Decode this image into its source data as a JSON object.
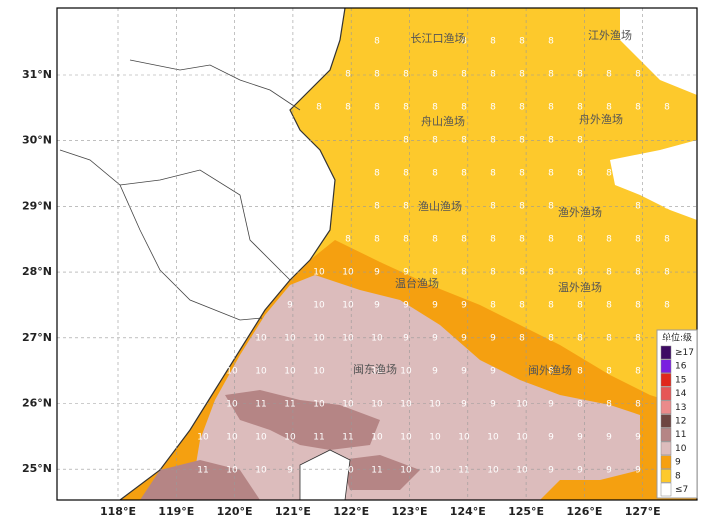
{
  "lat_labels": [
    "31°N",
    "30°N",
    "29°N",
    "28°N",
    "27°N",
    "26°N",
    "25°N"
  ],
  "lon_labels": [
    "118°E",
    "119°E",
    "120°E",
    "121°E",
    "122°E",
    "123°E",
    "124°E",
    "125°E",
    "126°E",
    "127°E"
  ],
  "fishing_grounds": [
    "长江口渔场",
    "江外渔场",
    "舟山渔场",
    "舟外渔场",
    "渔山渔场",
    "渔外渔场",
    "温台渔场",
    "温外渔场",
    "闽东渔场",
    "闽外渔场"
  ],
  "legend": {
    "title": "单位:级",
    "items": [
      {
        "label": "≥17",
        "color": "#3d0b63"
      },
      {
        "label": "16",
        "color": "#7a1fe0"
      },
      {
        "label": "15",
        "color": "#e0281c"
      },
      {
        "label": "14",
        "color": "#e65656"
      },
      {
        "label": "13",
        "color": "#eb8a8a"
      },
      {
        "label": "12",
        "color": "#6e4642"
      },
      {
        "label": "11",
        "color": "#b58585"
      },
      {
        "label": "10",
        "color": "#dcbcbc"
      },
      {
        "label": "9",
        "color": "#f5a010"
      },
      {
        "label": "8",
        "color": "#fdc92c"
      },
      {
        "label": "≤7",
        "color": "#ffffff"
      }
    ]
  },
  "grid": [
    [
      null,
      null,
      null,
      null,
      null,
      null,
      8,
      null,
      null,
      8,
      8,
      8,
      8,
      null,
      null,
      8,
      null
    ],
    [
      null,
      null,
      null,
      null,
      null,
      8,
      8,
      8,
      8,
      8,
      8,
      8,
      8,
      8,
      8,
      8,
      null
    ],
    [
      null,
      null,
      null,
      null,
      8,
      8,
      8,
      8,
      8,
      8,
      8,
      8,
      8,
      8,
      8,
      8,
      8
    ],
    [
      null,
      null,
      null,
      null,
      null,
      null,
      null,
      8,
      8,
      8,
      8,
      8,
      8,
      8,
      null,
      null,
      null
    ],
    [
      null,
      null,
      null,
      null,
      null,
      null,
      8,
      8,
      8,
      8,
      8,
      8,
      8,
      8,
      8,
      null,
      null
    ],
    [
      null,
      null,
      null,
      null,
      null,
      null,
      8,
      8,
      null,
      null,
      8,
      8,
      8,
      null,
      null,
      8,
      8
    ],
    [
      null,
      null,
      null,
      null,
      null,
      8,
      8,
      8,
      8,
      8,
      8,
      8,
      8,
      8,
      8,
      8,
      8
    ],
    [
      null,
      null,
      null,
      null,
      10,
      10,
      9,
      9,
      8,
      8,
      8,
      8,
      8,
      8,
      8,
      8,
      8
    ],
    [
      null,
      null,
      null,
      9,
      10,
      10,
      9,
      9,
      9,
      9,
      8,
      8,
      8,
      8,
      8,
      8,
      8
    ],
    [
      null,
      null,
      10,
      10,
      10,
      10,
      10,
      9,
      9,
      9,
      9,
      8,
      8,
      8,
      8,
      8,
      8
    ],
    [
      null,
      10,
      10,
      10,
      10,
      null,
      10,
      10,
      9,
      9,
      9,
      null,
      8,
      8,
      8,
      8,
      null
    ],
    [
      null,
      10,
      11,
      11,
      10,
      10,
      10,
      10,
      10,
      9,
      9,
      10,
      9,
      8,
      8,
      8,
      null
    ],
    [
      10,
      10,
      10,
      10,
      11,
      11,
      10,
      10,
      10,
      10,
      10,
      10,
      9,
      9,
      9,
      9,
      null
    ],
    [
      11,
      10,
      10,
      9,
      null,
      10,
      11,
      10,
      10,
      11,
      10,
      10,
      9,
      9,
      9,
      9,
      null
    ]
  ]
}
